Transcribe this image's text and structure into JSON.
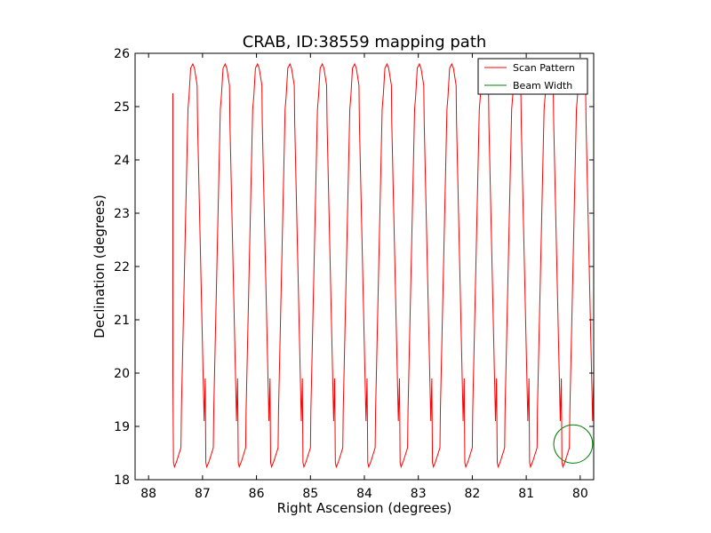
{
  "chart_data": {
    "type": "line",
    "title": "CRAB, ID:38559 mapping path",
    "xlabel": "Right Ascension (degrees)",
    "ylabel": "Declination (degrees)",
    "xlim": [
      88.25,
      79.75
    ],
    "ylim": [
      18,
      26
    ],
    "xaxis_inverted": true,
    "xticks": [
      "88",
      "87",
      "86",
      "85",
      "84",
      "83",
      "82",
      "81",
      "80"
    ],
    "xtick_values": [
      88,
      87,
      86,
      85,
      84,
      83,
      82,
      81,
      80
    ],
    "yticks": [
      "18",
      "19",
      "20",
      "21",
      "22",
      "23",
      "24",
      "25",
      "26"
    ],
    "ytick_values": [
      18,
      19,
      20,
      21,
      22,
      23,
      24,
      25,
      26
    ],
    "grid": false,
    "legend_position": "top-right",
    "series": [
      {
        "name": "Scan Pattern",
        "color": "#ff0000",
        "path": {
          "start": [
            87.55,
            25.25
          ],
          "ra_start": 87.55,
          "ra_step": -0.3,
          "legs": 29,
          "dec_low": 18.25,
          "dec_high": 25.8
        }
      },
      {
        "name": "Beam Width",
        "color": "#008000",
        "circle": {
          "ra": 80.13,
          "dec": 18.67,
          "radius_deg": 0.36
        }
      }
    ],
    "legend": [
      "Scan Pattern",
      "Beam Width"
    ]
  }
}
